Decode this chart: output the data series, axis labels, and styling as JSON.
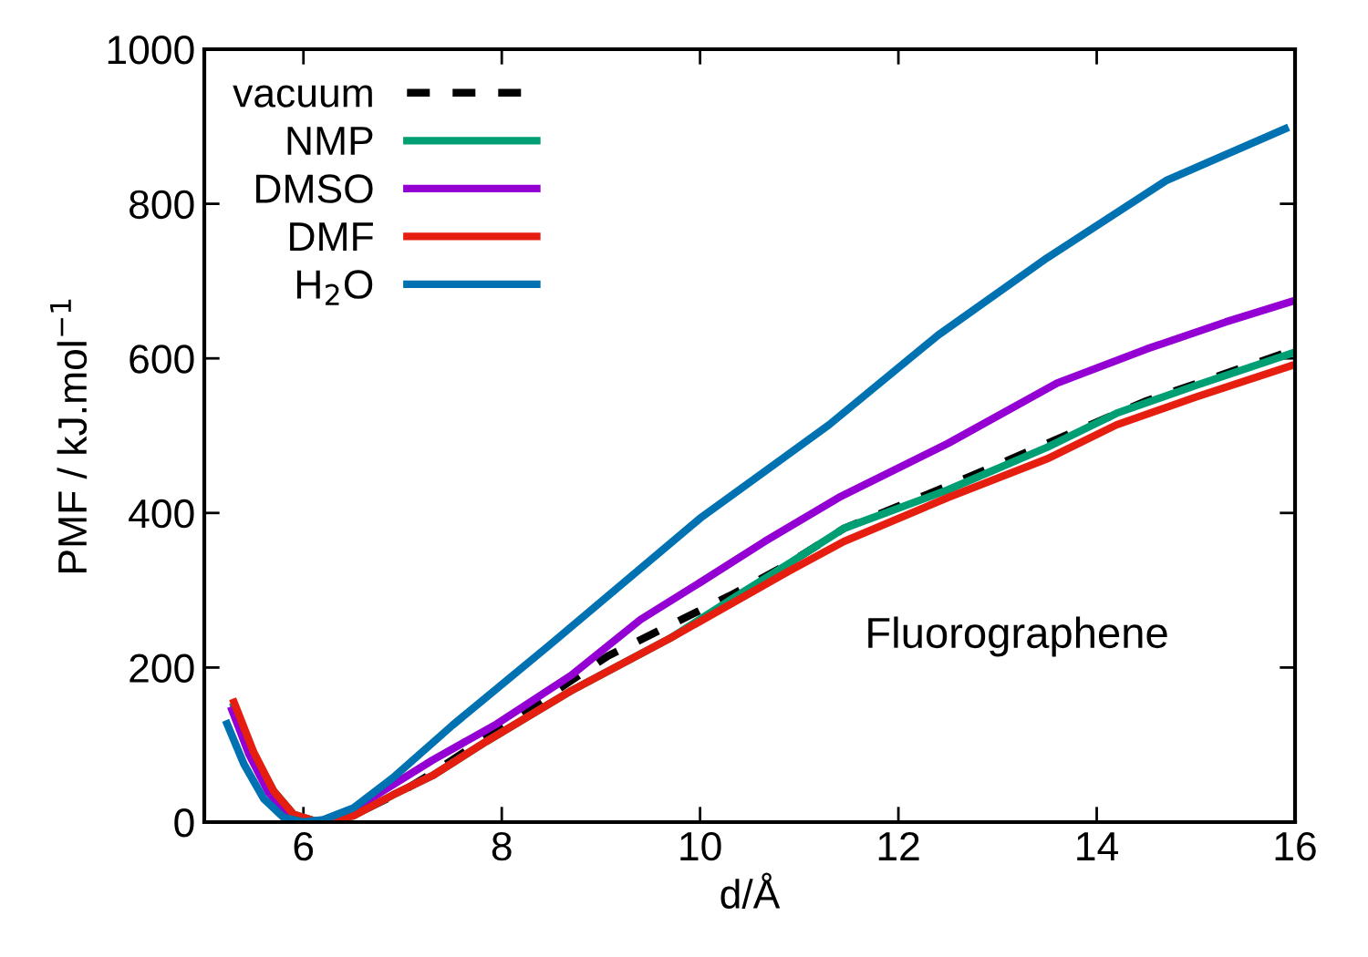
{
  "chart_data": {
    "type": "line",
    "xlabel": "d/Å",
    "ylabel": "PMF / kJ.mol$^{−1}$",
    "xlim": [
      5,
      16
    ],
    "ylim": [
      0,
      1000
    ],
    "xticks": [
      6,
      8,
      10,
      12,
      14,
      16
    ],
    "yticks": [
      0,
      200,
      400,
      600,
      800,
      1000
    ],
    "grid": false,
    "legend": "top left",
    "annotations": [
      "Fluorographene"
    ],
    "series": [
      {
        "name": "vacuum",
        "color": "#000000",
        "line_style": "dashed",
        "x": [
          6.2,
          6.6,
          7.0,
          7.33,
          8.2,
          9.07,
          10.3,
          10.9,
          11.45,
          12.5,
          13.5,
          14.5,
          15.9
        ],
        "values": [
          0,
          15,
          40,
          66,
          140,
          215,
          293,
          335,
          380,
          435,
          490,
          545,
          607
        ]
      },
      {
        "name": "NMP",
        "color": "#009e73",
        "line_style": "solid",
        "x": [
          5.3,
          5.5,
          5.7,
          5.9,
          6.15,
          6.5,
          6.9,
          7.3,
          7.84,
          8.7,
          9.7,
          10.4,
          10.9,
          11.45,
          12.5,
          13.5,
          14.2,
          15.0,
          16.0
        ],
        "values": [
          150,
          88,
          40,
          10,
          0,
          8,
          35,
          60,
          104,
          170,
          238,
          295,
          335,
          380,
          430,
          485,
          529,
          565,
          608
        ]
      },
      {
        "name": "DMSO",
        "color": "#9400d3",
        "line_style": "solid",
        "x": [
          5.28,
          5.45,
          5.65,
          5.85,
          6.1,
          6.4,
          6.8,
          7.3,
          7.95,
          8.7,
          9.4,
          10.0,
          10.65,
          11.4,
          12.5,
          13.6,
          14.5,
          15.3,
          16.0
        ],
        "values": [
          145,
          88,
          38,
          9,
          0,
          8,
          40,
          80,
          127,
          190,
          262,
          310,
          363,
          420,
          490,
          568,
          612,
          647,
          675
        ]
      },
      {
        "name": "DMF",
        "color": "#e51e10",
        "line_style": "solid",
        "x": [
          5.3,
          5.5,
          5.7,
          5.9,
          6.15,
          6.5,
          6.9,
          7.3,
          7.84,
          8.7,
          9.7,
          10.9,
          11.45,
          12.5,
          13.5,
          14.2,
          15.0,
          16.0
        ],
        "values": [
          155,
          90,
          40,
          10,
          0,
          8,
          35,
          60,
          104,
          170,
          238,
          325,
          363,
          420,
          470,
          514,
          550,
          592
        ]
      },
      {
        "name": "H$_{2}$O",
        "color": "#0072b2",
        "line_style": "solid",
        "x": [
          5.23,
          5.4,
          5.6,
          5.8,
          6.0,
          6.2,
          6.5,
          6.9,
          7.5,
          8.5,
          10.0,
          11.3,
          12.4,
          13.5,
          14.7,
          15.9
        ],
        "values": [
          127,
          75,
          30,
          6,
          0,
          3,
          18,
          57,
          125,
          231,
          393,
          514,
          630,
          730,
          830,
          897
        ]
      }
    ]
  }
}
